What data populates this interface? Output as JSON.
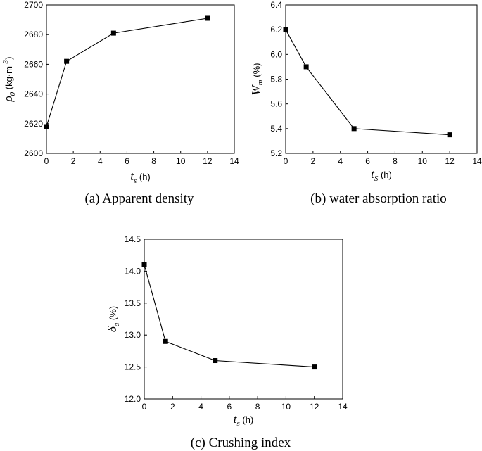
{
  "chart_data": [
    {
      "type": "line",
      "caption": "(a) Apparent density",
      "x": [
        0,
        1.5,
        5,
        12
      ],
      "series": [
        {
          "values": [
            2618,
            2662,
            2681,
            2691
          ]
        }
      ],
      "xlim": [
        0,
        14
      ],
      "ylim": [
        2600,
        2700
      ],
      "xticks": [
        "0",
        "2",
        "4",
        "6",
        "8",
        "10",
        "12",
        "14"
      ],
      "yticks": [
        "2600",
        "2620",
        "2640",
        "2660",
        "2680",
        "2700"
      ],
      "xlabel": {
        "symbol": "t",
        "sub": "s",
        "unit": " (h)"
      },
      "ylabel": {
        "symbol": "ρ",
        "sub": "0",
        "unit": " (kg·m",
        "sup": "-3",
        "close": ")"
      },
      "marker": "square",
      "grid": false
    },
    {
      "type": "line",
      "caption": "(b) water absorption ratio",
      "x": [
        0,
        1.5,
        5,
        12
      ],
      "series": [
        {
          "values": [
            6.2,
            5.9,
            5.4,
            5.35
          ]
        }
      ],
      "xlim": [
        0,
        14
      ],
      "ylim": [
        5.2,
        6.4
      ],
      "xticks": [
        "0",
        "2",
        "4",
        "6",
        "8",
        "10",
        "12",
        "14"
      ],
      "yticks": [
        "5.2",
        "5.4",
        "5.6",
        "5.8",
        "6.0",
        "6.2",
        "6.4"
      ],
      "xlabel": {
        "symbol": "t",
        "sub": "S",
        "unit": " (h)"
      },
      "ylabel": {
        "symbol": "W",
        "sub": "m",
        "unit": " (%)"
      },
      "marker": "square",
      "grid": false
    },
    {
      "type": "line",
      "caption": "(c) Crushing index",
      "x": [
        0,
        1.5,
        5,
        12
      ],
      "series": [
        {
          "values": [
            14.1,
            12.9,
            12.6,
            12.5
          ]
        }
      ],
      "xlim": [
        0,
        14
      ],
      "ylim": [
        12.0,
        14.5
      ],
      "xticks": [
        "0",
        "2",
        "4",
        "6",
        "8",
        "10",
        "12",
        "14"
      ],
      "yticks": [
        "12.0",
        "12.5",
        "13.0",
        "13.5",
        "14.0",
        "14.5"
      ],
      "xlabel": {
        "symbol": "t",
        "sub": "s",
        "unit": " (h)"
      },
      "ylabel": {
        "symbol": "δ",
        "sub": "a",
        "unit": " (%)"
      },
      "marker": "square",
      "grid": false
    }
  ],
  "colors": {
    "line": "#000000",
    "marker": "#000000",
    "axes": "#000000"
  }
}
